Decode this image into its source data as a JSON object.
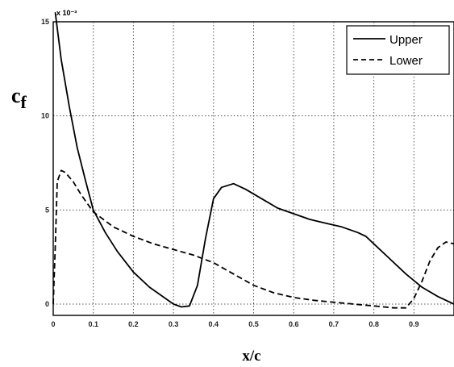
{
  "chart_data": {
    "type": "line",
    "title": "",
    "xlabel": "x/c",
    "ylabel": "c",
    "ylabel_sub": "f",
    "exponent_label": "x 10⁻³",
    "xlim": [
      0,
      1
    ],
    "ylim": [
      -0.6,
      15
    ],
    "x_ticks": [
      "0",
      "0.1",
      "0.2",
      "0.3",
      "0.4",
      "0.5",
      "0.6",
      "0.7",
      "0.8",
      "0.9"
    ],
    "x_tick_values": [
      0,
      0.1,
      0.2,
      0.3,
      0.4,
      0.5,
      0.6,
      0.7,
      0.8,
      0.9
    ],
    "y_ticks": [
      "0",
      "5",
      "10",
      "15"
    ],
    "y_tick_values": [
      0,
      5,
      10,
      15
    ],
    "grid": true,
    "legend_position": "top-right",
    "series": [
      {
        "name": "Upper",
        "style": "solid",
        "x": [
          0.005,
          0.02,
          0.04,
          0.06,
          0.08,
          0.1,
          0.13,
          0.16,
          0.2,
          0.24,
          0.28,
          0.3,
          0.32,
          0.34,
          0.36,
          0.38,
          0.4,
          0.42,
          0.45,
          0.48,
          0.52,
          0.56,
          0.6,
          0.64,
          0.68,
          0.72,
          0.76,
          0.78,
          0.8,
          0.84,
          0.88,
          0.92,
          0.96,
          1.0
        ],
        "y": [
          15.5,
          13.0,
          10.5,
          8.3,
          6.6,
          5.0,
          3.8,
          2.8,
          1.7,
          0.9,
          0.3,
          0.0,
          -0.15,
          -0.1,
          1.0,
          3.5,
          5.6,
          6.2,
          6.4,
          6.1,
          5.6,
          5.1,
          4.8,
          4.5,
          4.3,
          4.1,
          3.8,
          3.6,
          3.2,
          2.4,
          1.6,
          0.9,
          0.4,
          0.0
        ]
      },
      {
        "name": "Lower",
        "style": "dashed",
        "x": [
          0.0,
          0.005,
          0.01,
          0.02,
          0.03,
          0.05,
          0.07,
          0.1,
          0.15,
          0.2,
          0.25,
          0.3,
          0.35,
          0.4,
          0.45,
          0.5,
          0.55,
          0.6,
          0.65,
          0.7,
          0.75,
          0.8,
          0.85,
          0.88,
          0.9,
          0.92,
          0.94,
          0.96,
          0.98,
          1.0
        ],
        "y": [
          0.0,
          3.0,
          6.5,
          7.1,
          7.0,
          6.5,
          5.8,
          4.9,
          4.1,
          3.6,
          3.2,
          2.9,
          2.6,
          2.2,
          1.6,
          1.0,
          0.6,
          0.35,
          0.2,
          0.1,
          0.0,
          -0.1,
          -0.2,
          -0.2,
          0.3,
          1.2,
          2.3,
          3.0,
          3.3,
          3.2
        ]
      }
    ]
  }
}
